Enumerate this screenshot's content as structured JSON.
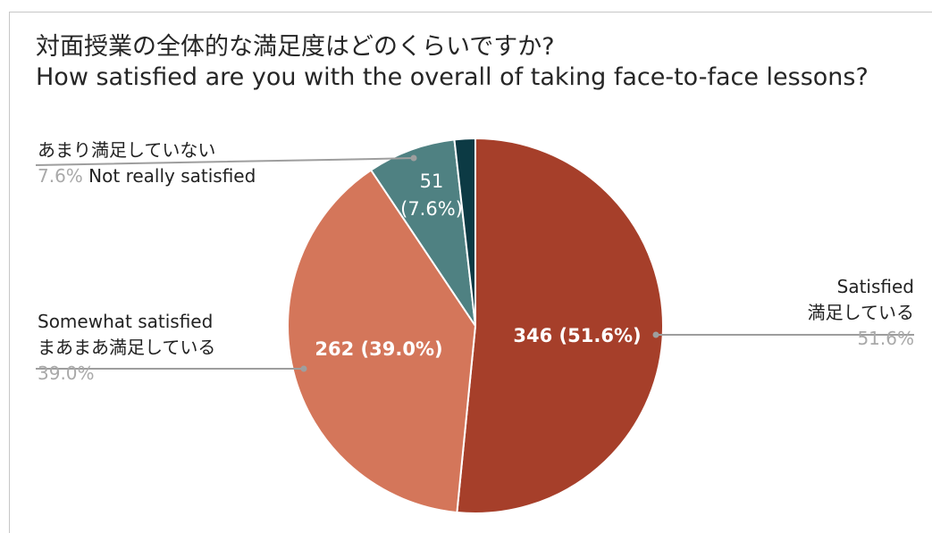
{
  "title_ja": "対面授業の全体的な満足度はどのくらいですか?",
  "title_en": "How satisfied are you with the overall of taking face-to-face lessons?",
  "chart_data": {
    "type": "pie",
    "title": "対面授業の全体的な満足度はどのくらいですか? How satisfied are you with the overall of taking face-to-face lessons?",
    "slices": [
      {
        "label_en": "Satisfied",
        "label_ja": "満足している",
        "value": 346,
        "percent": 51.6,
        "percent_label": "51.6%",
        "inside_label": "346 (51.6%)",
        "color": "#a63f2a"
      },
      {
        "label_en": "Somewhat satisfied",
        "label_ja": "まあまあ満足している",
        "value": 262,
        "percent": 39.0,
        "percent_label": "39.0%",
        "inside_label": "262 (39.0%)",
        "color": "#d4765a"
      },
      {
        "label_en": "Not really satisfied",
        "label_ja": "あまり満足していない",
        "value": 51,
        "percent": 7.6,
        "percent_label": "7.6%",
        "inside_label_line1": "51",
        "inside_label_line2": "(7.6%)",
        "color": "#4f8182"
      },
      {
        "label_en": "",
        "label_ja": "",
        "value": 12,
        "percent": 1.8,
        "color": "#0c3a44"
      }
    ]
  }
}
